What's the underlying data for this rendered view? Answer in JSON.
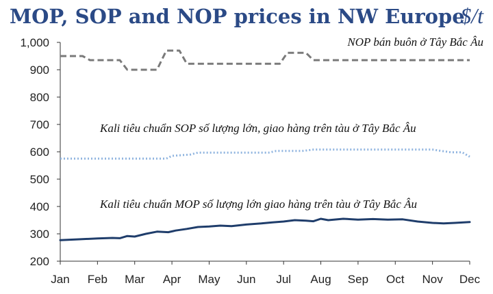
{
  "chart_data": {
    "type": "line",
    "title": "MOP, SOP and NOP prices in NW Europe",
    "unit_label": "$/t",
    "xlabel": "",
    "ylabel": "",
    "ylim": [
      200,
      1000
    ],
    "y_ticks": [
      "200",
      "300",
      "400",
      "500",
      "600",
      "700",
      "800",
      "900",
      "1,000"
    ],
    "y_tick_values": [
      200,
      300,
      400,
      500,
      600,
      700,
      800,
      900,
      1000
    ],
    "months": [
      "Jan",
      "Feb",
      "Mar",
      "Apr",
      "May",
      "Jun",
      "Jul",
      "Aug",
      "Sep",
      "Oct",
      "Nov",
      "Dec"
    ],
    "x_range": [
      0,
      11
    ],
    "grid": false,
    "series": [
      {
        "name": "NOP bán buôn ở Tây Bắc Âu",
        "style": "dashed",
        "color": "#7a7a7a",
        "x": [
          0,
          0.6,
          0.8,
          1.6,
          1.8,
          2.6,
          2.85,
          3.2,
          3.4,
          3.9,
          4.0,
          5.0,
          5.5,
          5.9,
          6.1,
          6.6,
          6.8,
          8.0,
          9.0,
          10.0,
          11.0
        ],
        "values": [
          950,
          950,
          935,
          935,
          900,
          900,
          970,
          970,
          922,
          922,
          922,
          922,
          922,
          922,
          962,
          962,
          935,
          935,
          935,
          935,
          935
        ]
      },
      {
        "name": "Kali tiêu chuẩn SOP số lượng lớn, giao hàng trên tàu ở Tây Bắc Âu",
        "style": "dotted",
        "color": "#8fb4df",
        "x": [
          0,
          1,
          2,
          2.85,
          3.0,
          3.5,
          3.7,
          4.5,
          5.0,
          5.6,
          5.8,
          6.5,
          6.8,
          7.5,
          8.0,
          9.0,
          10.0,
          10.5,
          10.8,
          11.0
        ],
        "values": [
          575,
          575,
          575,
          575,
          585,
          590,
          597,
          597,
          597,
          597,
          603,
          603,
          608,
          608,
          608,
          608,
          608,
          598,
          598,
          582
        ]
      },
      {
        "name": "Kali tiêu chuẩn MOP số lượng lớn giao hàng trên tàu ở Tây Bắc Âu",
        "style": "solid",
        "color": "#1f3d6b",
        "x": [
          0,
          0.5,
          1.0,
          1.4,
          1.6,
          1.8,
          2.0,
          2.3,
          2.6,
          2.9,
          3.1,
          3.4,
          3.7,
          4.0,
          4.3,
          4.6,
          5.0,
          5.4,
          5.7,
          6.0,
          6.3,
          6.6,
          6.8,
          7.0,
          7.2,
          7.6,
          8.0,
          8.4,
          8.8,
          9.2,
          9.6,
          10.0,
          10.3,
          10.6,
          11.0
        ],
        "values": [
          277,
          280,
          283,
          285,
          284,
          292,
          290,
          300,
          308,
          306,
          312,
          318,
          325,
          327,
          330,
          328,
          334,
          338,
          342,
          345,
          350,
          348,
          346,
          355,
          350,
          355,
          352,
          354,
          352,
          353,
          345,
          340,
          338,
          340,
          343
        ]
      }
    ],
    "annotations": [
      "NOP bán buôn ở Tây Bắc Âu",
      "Kali tiêu chuẩn SOP số lượng lớn, giao hàng trên tàu ở Tây Bắc Âu",
      "Kali tiêu chuẩn MOP số lượng lớn giao hàng trên tàu ở Tây Bắc Âu"
    ]
  }
}
